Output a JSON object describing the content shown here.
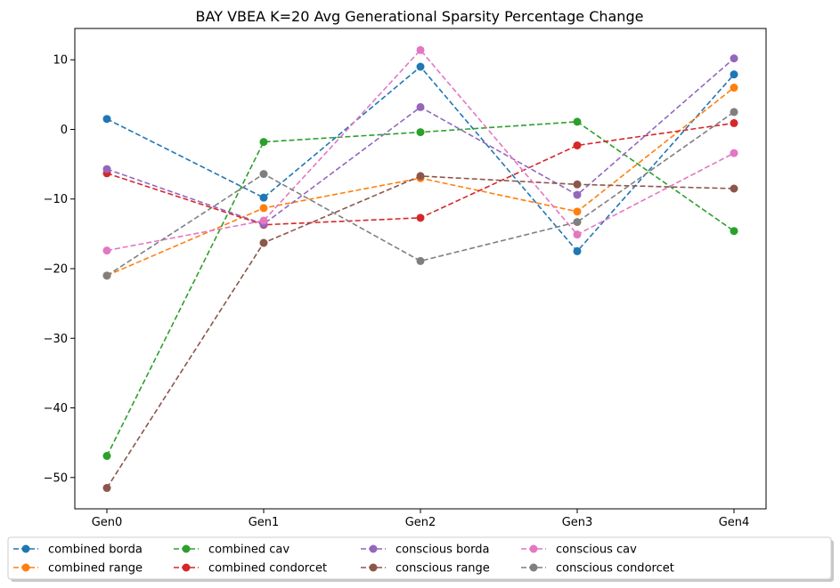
{
  "chart_data": {
    "type": "line",
    "title": "BAY VBEA K=20 Avg Generational Sparsity Percentage Change",
    "xlabel": "",
    "ylabel": "",
    "categories": [
      "Gen0",
      "Gen1",
      "Gen2",
      "Gen3",
      "Gen4"
    ],
    "ylim": [
      -54.5,
      14.5
    ],
    "yticks": [
      10,
      0,
      -10,
      -20,
      -30,
      -40,
      -50
    ],
    "ytick_labels": [
      "10",
      "0",
      "−10",
      "−20",
      "−30",
      "−40",
      "−50"
    ],
    "grid": false,
    "legend_position": "bottom",
    "line_style": "dashed",
    "marker": "circle",
    "series": [
      {
        "name": "combined borda",
        "color": "#1f77b4",
        "values": [
          1.5,
          -9.8,
          9.0,
          -17.5,
          7.9
        ]
      },
      {
        "name": "combined range",
        "color": "#ff7f0e",
        "values": [
          -21.0,
          -11.3,
          -7.0,
          -11.8,
          6.0
        ]
      },
      {
        "name": "combined cav",
        "color": "#2ca02c",
        "values": [
          -46.9,
          -1.8,
          -0.4,
          1.1,
          -14.6
        ]
      },
      {
        "name": "combined condorcet",
        "color": "#d62728",
        "values": [
          -6.3,
          -13.7,
          -12.7,
          -2.3,
          0.9
        ]
      },
      {
        "name": "conscious borda",
        "color": "#9467bd",
        "values": [
          -5.7,
          -13.6,
          3.2,
          -9.4,
          10.2
        ]
      },
      {
        "name": "conscious range",
        "color": "#8c564b",
        "values": [
          -51.5,
          -16.3,
          -6.7,
          -7.9,
          -8.5
        ]
      },
      {
        "name": "conscious cav",
        "color": "#e377c2",
        "values": [
          -17.4,
          -13.1,
          11.4,
          -15.1,
          -3.4
        ]
      },
      {
        "name": "conscious condorcet",
        "color": "#7f7f7f",
        "values": [
          -21.0,
          -6.4,
          -18.9,
          -13.3,
          2.5
        ]
      }
    ]
  }
}
